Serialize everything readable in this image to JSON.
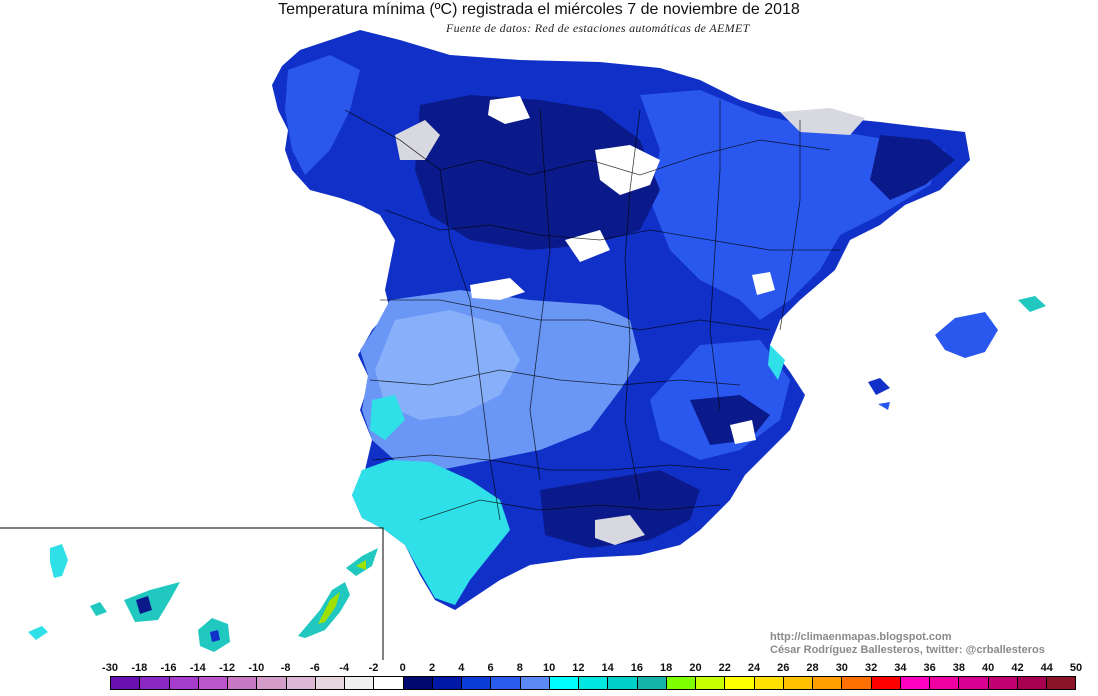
{
  "title": "Temperatura mínima (ºC) registrada el miércoles 7 de noviembre de 2018",
  "subtitle": "Fuente de datos: Red de estaciones automáticas de AEMET",
  "credit": {
    "line1": "http://climaenmapas.blogspot.com",
    "line2": "César Rodríguez Ballesteros, twitter: @crballesteros"
  },
  "legend": {
    "labels": [
      "-30",
      "-18",
      "-16",
      "-14",
      "-12",
      "-10",
      "-8",
      "-6",
      "-4",
      "-2",
      "0",
      "2",
      "4",
      "6",
      "8",
      "10",
      "12",
      "14",
      "16",
      "18",
      "20",
      "22",
      "24",
      "26",
      "28",
      "30",
      "32",
      "34",
      "36",
      "38",
      "40",
      "42",
      "44",
      "50"
    ],
    "colors": [
      "#6a0fb0",
      "#8a28c4",
      "#a63ccc",
      "#bb55cc",
      "#c978c4",
      "#d49cc8",
      "#dcb8d4",
      "#e6d6e0",
      "#f0f0f0",
      "#ffffff",
      "#000a6e",
      "#0018a8",
      "#0a3cd6",
      "#2a5cf0",
      "#5b8af4",
      "#00ffff",
      "#00e6e0",
      "#00d0c8",
      "#16b4a8",
      "#80ff00",
      "#c8ff00",
      "#ffff00",
      "#ffe000",
      "#ffc000",
      "#ffa000",
      "#ff7000",
      "#ff0000",
      "#ff00c0",
      "#f000a0",
      "#d80090",
      "#c00070",
      "#a80050",
      "#8c1428"
    ]
  },
  "map": {
    "colors": {
      "deep": "#0a1a8a",
      "dark": "#1030c8",
      "mid": "#2a58ee",
      "light": "#6a96f6",
      "pale": "#88b0fa",
      "cyan": "#30e0e8",
      "teal": "#20c8c0",
      "frost": "#d8d8e0",
      "green": "#a0e000"
    }
  }
}
